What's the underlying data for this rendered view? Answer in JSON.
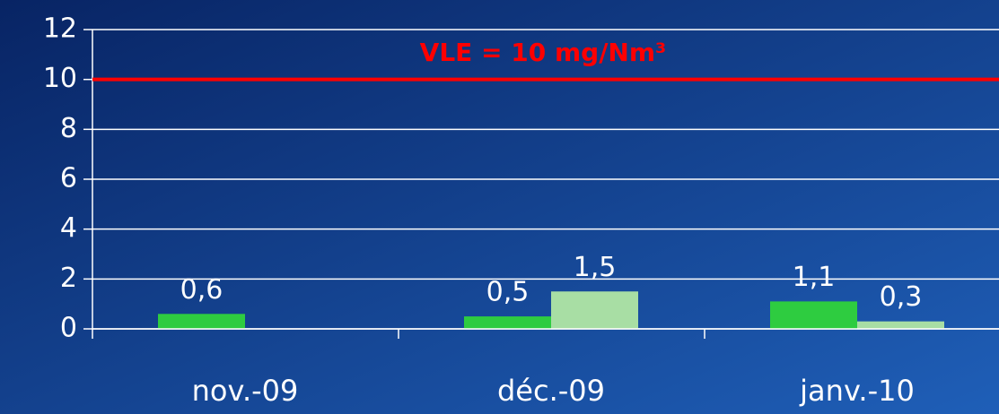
{
  "chart_data": {
    "type": "bar",
    "categories": [
      "nov.-09",
      "déc.-09",
      "janv.-10"
    ],
    "series": [
      {
        "color": "#2ecc40",
        "values": [
          0.6,
          0.5,
          1.1
        ],
        "value_labels": [
          "0,6",
          "0,5",
          "1,1"
        ]
      },
      {
        "color": "#a8dea4",
        "values": [
          null,
          1.5,
          0.3
        ],
        "value_labels": [
          null,
          "1,5",
          "0,3"
        ]
      }
    ],
    "ylim": [
      0,
      12
    ],
    "yticks": [
      0,
      2,
      4,
      6,
      8,
      10,
      12
    ],
    "grid": true,
    "reference_line": {
      "value": 10,
      "label": "VLE = 10 mg/Nm³",
      "color": "#ff0000"
    }
  }
}
